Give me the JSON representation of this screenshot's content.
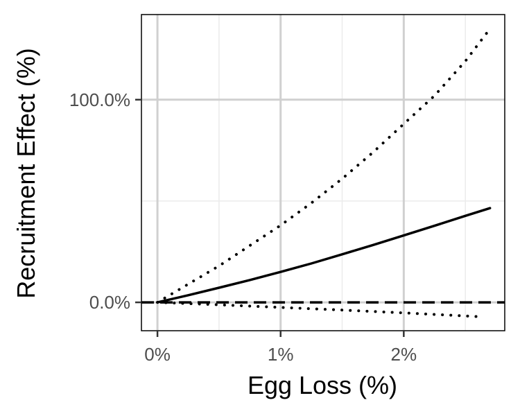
{
  "chart_data": {
    "type": "line",
    "title": "",
    "xlabel": "Egg Loss (%)",
    "ylabel": "Recruitment Effect (%)",
    "x_ticks": [
      {
        "value": 0,
        "label": "0%"
      },
      {
        "value": 1,
        "label": "1%"
      },
      {
        "value": 2,
        "label": "2%"
      }
    ],
    "y_ticks": [
      {
        "value": 0,
        "label": "0.0%"
      },
      {
        "value": 100,
        "label": "100.0%"
      }
    ],
    "x_minor": [
      0.5,
      1.5,
      2.5
    ],
    "y_minor": [
      50
    ],
    "xlim": [
      -0.13,
      2.82
    ],
    "ylim": [
      -14,
      142
    ],
    "grid": true,
    "legend": "none",
    "reference_line": {
      "y": 0,
      "style": "dashed"
    },
    "series": [
      {
        "style": "dotted",
        "x": [
          0,
          0.25,
          0.5,
          0.75,
          1.0,
          1.25,
          1.5,
          1.75,
          2.0,
          2.25,
          2.5,
          2.7
        ],
        "y": [
          0,
          9,
          18,
          28,
          38,
          49,
          61,
          74,
          88,
          102,
          119,
          135
        ]
      },
      {
        "style": "solid",
        "x": [
          0,
          0.25,
          0.5,
          0.75,
          1.0,
          1.25,
          1.5,
          1.75,
          2.0,
          2.25,
          2.5,
          2.7
        ],
        "y": [
          0,
          3.5,
          7.2,
          11.0,
          15.0,
          19.2,
          23.7,
          28.3,
          33.0,
          37.8,
          42.7,
          46.5
        ]
      },
      {
        "style": "dotted",
        "x": [
          0,
          0.5,
          1.0,
          1.5,
          2.0,
          2.5,
          2.65
        ],
        "y": [
          0,
          -1.2,
          -2.5,
          -3.8,
          -5.2,
          -6.7,
          -7.2
        ]
      }
    ]
  },
  "colors": {
    "panel_border": "#000000",
    "grid_major": "#d0d0d0",
    "grid_minor": "#ebebeb",
    "tick_label": "#4d4d4d",
    "line": "#000000"
  }
}
